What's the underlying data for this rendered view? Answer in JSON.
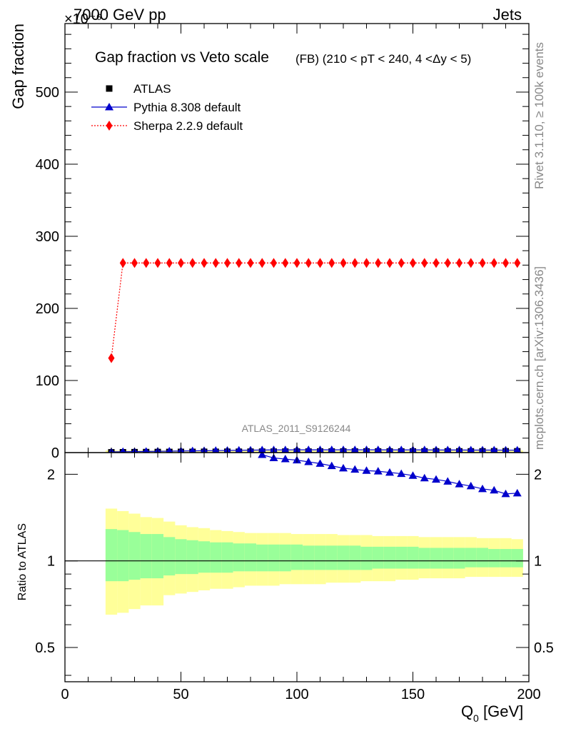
{
  "header": {
    "left": "7000 GeV pp",
    "right": "Jets",
    "exponent": "×10⁻⁶"
  },
  "side_text": {
    "rivet": "Rivet 3.1.10, ≥ 100k events",
    "mcplots": "mcplots.cern.ch [arXiv:1306.3436]"
  },
  "colors": {
    "atlas": "#000000",
    "pythia": "#0000cc",
    "sherpa": "#ff0000",
    "band_inner": "#99ff99",
    "band_outer": "#ffff99"
  },
  "chart_data": [
    {
      "type": "scatter",
      "title": "Gap fraction vs Veto scale",
      "subtitle": "(FB) (210 < pT < 240, 4 <Δy < 5)",
      "ylabel": "Gap fraction",
      "watermark": "ATLAS_2011_S9126244",
      "xlim": [
        0,
        200
      ],
      "ylim": [
        0,
        0.000595
      ],
      "y_ticks": [
        {
          "value": 0,
          "label": "0"
        },
        {
          "value": 0.0001,
          "label": "100"
        },
        {
          "value": 0.0002,
          "label": "200"
        },
        {
          "value": 0.0003,
          "label": "300"
        },
        {
          "value": 0.0004,
          "label": "400"
        },
        {
          "value": 0.0005,
          "label": "500"
        }
      ],
      "legend_position": "top-left",
      "x": [
        20,
        25,
        30,
        35,
        40,
        45,
        50,
        55,
        60,
        65,
        70,
        75,
        80,
        85,
        90,
        95,
        100,
        105,
        110,
        115,
        120,
        125,
        130,
        135,
        140,
        145,
        150,
        155,
        160,
        165,
        170,
        175,
        180,
        185,
        190,
        195
      ],
      "series": [
        {
          "name": "ATLAS",
          "marker": "square",
          "values": [
            4e-07,
            5e-07,
            6e-07,
            7e-07,
            8e-07,
            9e-07,
            1e-06,
            1e-06,
            1.1e-06,
            1.1e-06,
            1.2e-06,
            1.2e-06,
            1.3e-06,
            1.3e-06,
            1.3e-06,
            1.4e-06,
            1.4e-06,
            1.4e-06,
            1.5e-06,
            1.5e-06,
            1.5e-06,
            1.5e-06,
            1.6e-06,
            1.6e-06,
            1.6e-06,
            1.6e-06,
            1.6e-06,
            1.7e-06,
            1.7e-06,
            1.7e-06,
            1.7e-06,
            1.7e-06,
            1.7e-06,
            1.8e-06,
            1.8e-06,
            1.8e-06
          ]
        },
        {
          "name": "Pythia 8.308 default",
          "marker": "triangle",
          "values": [
            1e-06,
            1.2e-06,
            1.4e-06,
            1.6e-06,
            1.8e-06,
            2e-06,
            2.2e-06,
            2.4e-06,
            2.6e-06,
            2.8e-06,
            3e-06,
            3.2e-06,
            3.4e-06,
            3.6e-06,
            3.7e-06,
            3.7e-06,
            3.8e-06,
            3.8e-06,
            3.8e-06,
            3.8e-06,
            3.8e-06,
            3.8e-06,
            3.8e-06,
            3.8e-06,
            3.7e-06,
            3.7e-06,
            3.7e-06,
            3.7e-06,
            3.6e-06,
            3.6e-06,
            3.6e-06,
            3.5e-06,
            3.5e-06,
            3.5e-06,
            3.4e-06,
            3.4e-06
          ]
        },
        {
          "name": "Sherpa 2.2.9 default",
          "marker": "diamond",
          "values": [
            0.000131,
            0.000263,
            0.000263,
            0.000263,
            0.000263,
            0.000263,
            0.000263,
            0.000263,
            0.000263,
            0.000263,
            0.000263,
            0.000263,
            0.000263,
            0.000263,
            0.000263,
            0.000263,
            0.000263,
            0.000263,
            0.000263,
            0.000263,
            0.000263,
            0.000263,
            0.000263,
            0.000263,
            0.000263,
            0.000263,
            0.000263,
            0.000263,
            0.000263,
            0.000263,
            0.000263,
            0.000263,
            0.000263,
            0.000263,
            0.000263,
            0.000263
          ]
        }
      ]
    },
    {
      "type": "line",
      "title": "",
      "ylabel": "Ratio to ATLAS",
      "xlabel": "Q0 [GeV]",
      "xlim": [
        0,
        200
      ],
      "ylim": [
        0.38,
        2.38
      ],
      "x_ticks": [
        {
          "value": 0,
          "label": "0"
        },
        {
          "value": 50,
          "label": "50"
        },
        {
          "value": 100,
          "label": "100"
        },
        {
          "value": 150,
          "label": "150"
        },
        {
          "value": 200,
          "label": "200"
        }
      ],
      "y_ticks": [
        {
          "value": 0.5,
          "label": "0.5"
        },
        {
          "value": 1,
          "label": "1"
        },
        {
          "value": 2,
          "label": "2"
        }
      ],
      "bands": {
        "edges": [
          17.5,
          22.5,
          27.5,
          32.5,
          37.5,
          42.5,
          47.5,
          52.5,
          57.5,
          62.5,
          67.5,
          72.5,
          77.5,
          82.5,
          87.5,
          92.5,
          97.5,
          102.5,
          107.5,
          112.5,
          117.5,
          122.5,
          127.5,
          132.5,
          137.5,
          142.5,
          147.5,
          152.5,
          157.5,
          162.5,
          167.5,
          172.5,
          177.5,
          182.5,
          187.5,
          192.5,
          197.5
        ],
        "outer_low": [
          0.65,
          0.66,
          0.68,
          0.7,
          0.7,
          0.76,
          0.77,
          0.78,
          0.79,
          0.8,
          0.8,
          0.81,
          0.82,
          0.82,
          0.82,
          0.83,
          0.83,
          0.83,
          0.83,
          0.84,
          0.84,
          0.84,
          0.85,
          0.85,
          0.85,
          0.86,
          0.86,
          0.87,
          0.87,
          0.87,
          0.87,
          0.88,
          0.88,
          0.88,
          0.88,
          0.88
        ],
        "outer_high": [
          1.52,
          1.49,
          1.46,
          1.42,
          1.41,
          1.37,
          1.33,
          1.31,
          1.3,
          1.28,
          1.27,
          1.26,
          1.25,
          1.25,
          1.25,
          1.25,
          1.24,
          1.24,
          1.24,
          1.24,
          1.23,
          1.23,
          1.23,
          1.22,
          1.22,
          1.22,
          1.22,
          1.21,
          1.21,
          1.21,
          1.21,
          1.21,
          1.2,
          1.2,
          1.2,
          1.19
        ],
        "inner_low": [
          0.85,
          0.85,
          0.86,
          0.87,
          0.87,
          0.89,
          0.9,
          0.9,
          0.91,
          0.91,
          0.91,
          0.92,
          0.92,
          0.92,
          0.92,
          0.92,
          0.93,
          0.93,
          0.93,
          0.93,
          0.93,
          0.93,
          0.93,
          0.94,
          0.94,
          0.94,
          0.94,
          0.94,
          0.94,
          0.94,
          0.94,
          0.95,
          0.95,
          0.95,
          0.95,
          0.95
        ],
        "inner_high": [
          1.29,
          1.28,
          1.26,
          1.24,
          1.24,
          1.21,
          1.19,
          1.18,
          1.17,
          1.16,
          1.16,
          1.15,
          1.15,
          1.14,
          1.14,
          1.14,
          1.14,
          1.13,
          1.13,
          1.13,
          1.13,
          1.13,
          1.12,
          1.12,
          1.12,
          1.12,
          1.12,
          1.11,
          1.11,
          1.11,
          1.11,
          1.11,
          1.11,
          1.1,
          1.1,
          1.1
        ]
      },
      "series": [
        {
          "name": "Pythia 8.308 default",
          "x": [
            85,
            90,
            95,
            100,
            105,
            110,
            115,
            120,
            125,
            130,
            135,
            140,
            145,
            150,
            155,
            160,
            165,
            170,
            175,
            180,
            185,
            190,
            195
          ],
          "values": [
            2.34,
            2.28,
            2.26,
            2.24,
            2.21,
            2.18,
            2.14,
            2.1,
            2.08,
            2.06,
            2.05,
            2.03,
            2.01,
            1.98,
            1.94,
            1.92,
            1.89,
            1.85,
            1.82,
            1.78,
            1.76,
            1.71,
            1.72
          ]
        }
      ]
    }
  ]
}
